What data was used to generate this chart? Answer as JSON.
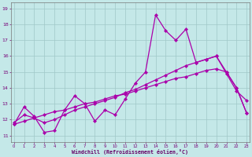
{
  "xlabel": "Windchill (Refroidissement éolien,°C)",
  "bg_color": "#c4e8e8",
  "line_color": "#aa00aa",
  "grid_color": "#a0c8c8",
  "x_ticks": [
    0,
    1,
    2,
    3,
    4,
    5,
    6,
    7,
    8,
    9,
    10,
    11,
    12,
    13,
    14,
    15,
    16,
    17,
    18,
    19,
    20,
    21,
    22,
    23
  ],
  "y_ticks": [
    11,
    12,
    13,
    14,
    15,
    16,
    17,
    18,
    19
  ],
  "xlim": [
    -0.3,
    23.3
  ],
  "ylim": [
    10.6,
    19.4
  ],
  "series1_x": [
    0,
    1,
    2,
    3,
    4,
    5,
    6,
    7,
    8,
    9,
    10,
    11,
    12,
    13,
    14,
    15,
    16,
    17,
    18,
    19,
    20,
    21,
    22,
    23
  ],
  "series1_y": [
    11.7,
    12.8,
    12.2,
    11.2,
    11.3,
    12.6,
    13.5,
    13.0,
    11.9,
    12.6,
    12.3,
    13.3,
    14.3,
    15.0,
    18.6,
    17.6,
    17.0,
    17.7,
    15.6,
    15.8,
    16.0,
    14.9,
    13.8,
    13.2
  ],
  "series2_x": [
    0,
    1,
    2,
    3,
    4,
    5,
    6,
    7,
    8,
    9,
    10,
    11,
    12,
    13,
    14,
    15,
    16,
    17,
    18,
    19,
    20,
    21,
    22,
    23
  ],
  "series2_y": [
    11.8,
    12.3,
    12.1,
    11.8,
    12.0,
    12.3,
    12.6,
    12.8,
    13.0,
    13.2,
    13.4,
    13.7,
    13.9,
    14.2,
    14.5,
    14.8,
    15.1,
    15.4,
    15.6,
    15.8,
    16.0,
    15.0,
    14.0,
    12.4
  ],
  "series3_x": [
    0,
    1,
    2,
    3,
    4,
    5,
    6,
    7,
    8,
    9,
    10,
    11,
    12,
    13,
    14,
    15,
    16,
    17,
    18,
    19,
    20,
    21,
    22,
    23
  ],
  "series3_y": [
    11.7,
    11.9,
    12.1,
    12.3,
    12.5,
    12.6,
    12.8,
    13.0,
    13.1,
    13.3,
    13.5,
    13.6,
    13.8,
    14.0,
    14.2,
    14.4,
    14.6,
    14.7,
    14.9,
    15.1,
    15.2,
    15.0,
    14.0,
    12.4
  ]
}
